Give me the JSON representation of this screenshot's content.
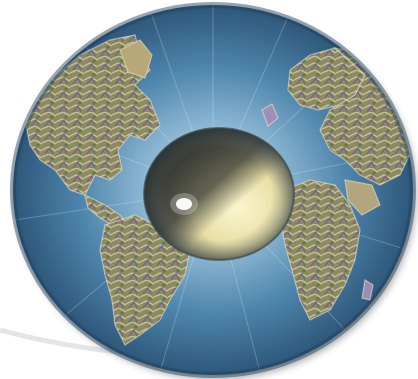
{
  "image": {
    "subject": "eye-globe",
    "colors": {
      "background": "#ffffff",
      "iris_outer": "#2f5f86",
      "iris_mid": "#4f86ad",
      "iris_inner": "#9bc3dc",
      "land_green": "#6f8f4e",
      "land_tan": "#b49a6a",
      "land_violet": "#8d7fae",
      "pupil_dark": "#2a2d2a",
      "lens_yellow": "#efe7b3"
    }
  }
}
